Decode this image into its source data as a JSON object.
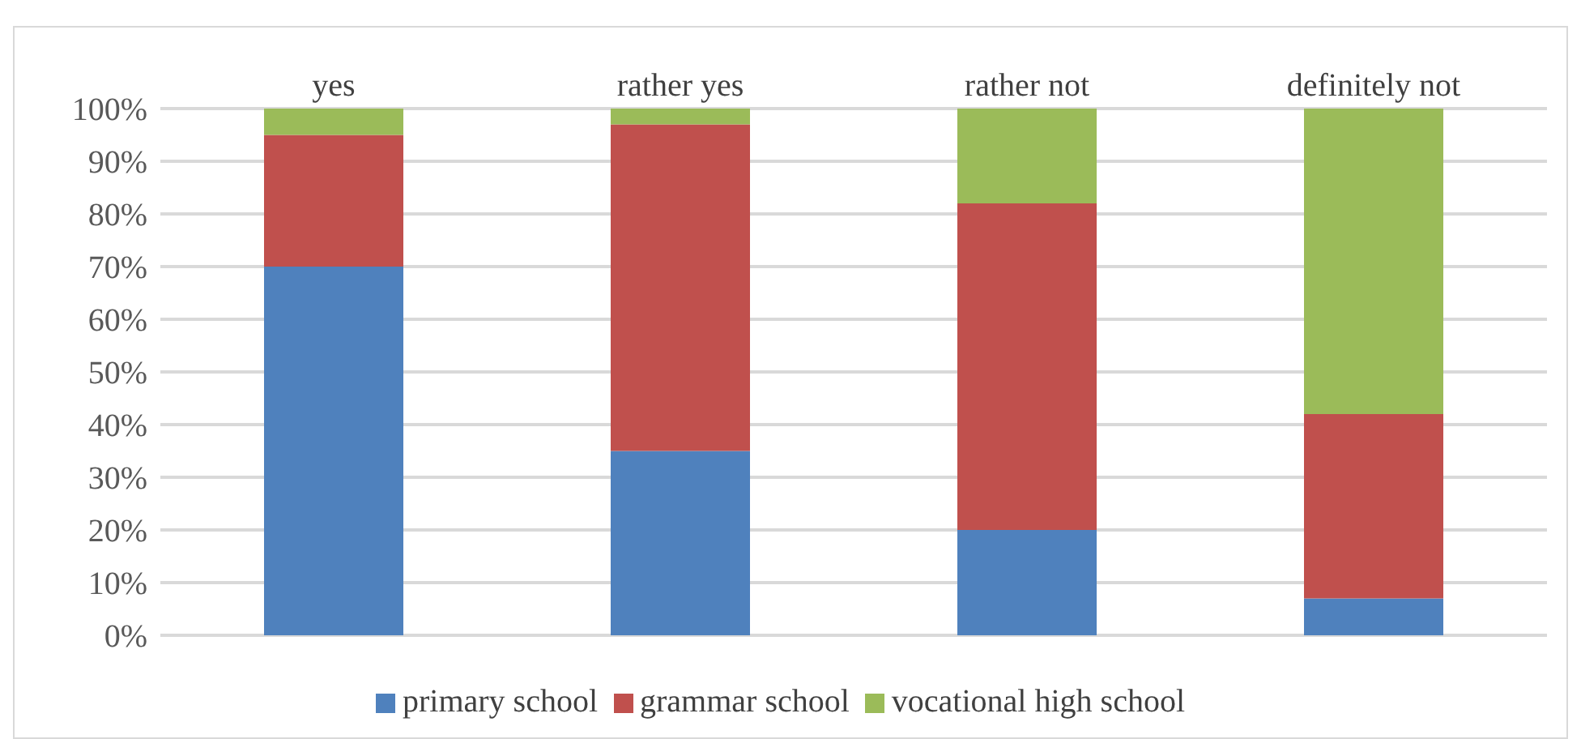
{
  "chart_data": {
    "type": "bar",
    "stacked": true,
    "categories": [
      "yes",
      "rather yes",
      "rather not",
      "definitely not"
    ],
    "series": [
      {
        "name": "primary school",
        "color": "#4f81bd",
        "values": [
          70,
          35,
          20,
          7
        ]
      },
      {
        "name": "grammar school",
        "color": "#c0504d",
        "values": [
          25,
          62,
          62,
          35
        ]
      },
      {
        "name": "vocational high school",
        "color": "#9bbb59",
        "values": [
          5,
          3,
          18,
          58
        ]
      }
    ],
    "ylim": [
      0,
      100
    ],
    "yticks": [
      {
        "value": 0,
        "label": "0%"
      },
      {
        "value": 10,
        "label": "10%"
      },
      {
        "value": 20,
        "label": "20%"
      },
      {
        "value": 30,
        "label": "30%"
      },
      {
        "value": 40,
        "label": "40%"
      },
      {
        "value": 50,
        "label": "50%"
      },
      {
        "value": 60,
        "label": "60%"
      },
      {
        "value": 70,
        "label": "70%"
      },
      {
        "value": 80,
        "label": "80%"
      },
      {
        "value": 90,
        "label": "90%"
      },
      {
        "value": 100,
        "label": "100%"
      }
    ],
    "grid": "y",
    "legend": "bottom"
  }
}
